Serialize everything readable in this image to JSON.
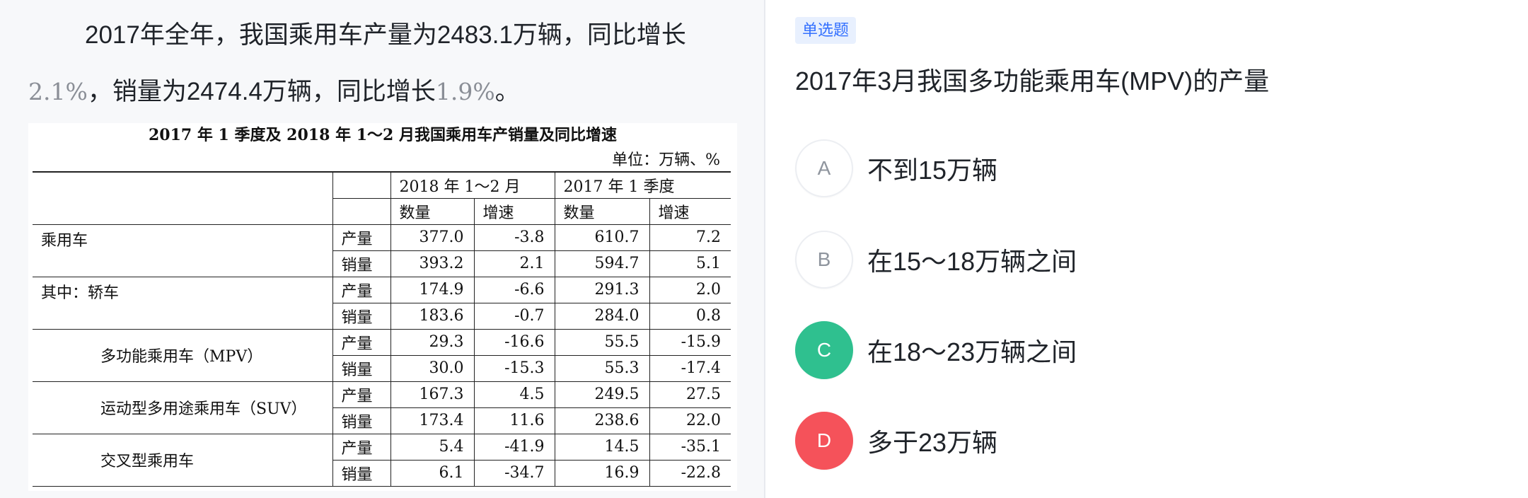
{
  "passage": {
    "line1": "2017年全年，我国乘用车产量为2483.1万辆，同比增长",
    "num1": "2.1%",
    "mid": "，销量为2474.4万辆，同比增长",
    "num2": "1.9%",
    "end": "。"
  },
  "table": {
    "title": "2017 年 1 季度及 2018 年 1～2 月我国乘用车产销量及同比增速",
    "unit": "单位：万辆、%",
    "period1": "2018 年 1～2 月",
    "period2": "2017 年 1 季度",
    "col_qty": "数量",
    "col_rate": "增速",
    "prod": "产量",
    "sales": "销量",
    "rows": [
      {
        "name": "乘用车",
        "prod": [
          "377.0",
          "-3.8",
          "610.7",
          "7.2"
        ],
        "sales": [
          "393.2",
          "2.1",
          "594.7",
          "5.1"
        ]
      },
      {
        "name": "其中：轿车",
        "prod": [
          "174.9",
          "-6.6",
          "291.3",
          "2.0"
        ],
        "sales": [
          "183.6",
          "-0.7",
          "284.0",
          "0.8"
        ]
      },
      {
        "name": "多功能乘用车（MPV）",
        "prod": [
          "29.3",
          "-16.6",
          "55.5",
          "-15.9"
        ],
        "sales": [
          "30.0",
          "-15.3",
          "55.3",
          "-17.4"
        ]
      },
      {
        "name": "运动型多用途乘用车（SUV）",
        "prod": [
          "167.3",
          "4.5",
          "249.5",
          "27.5"
        ],
        "sales": [
          "173.4",
          "11.6",
          "238.6",
          "22.0"
        ]
      },
      {
        "name": "交叉型乘用车",
        "prod": [
          "5.4",
          "-41.9",
          "14.5",
          "-35.1"
        ],
        "sales": [
          "6.1",
          "-34.7",
          "16.9",
          "-22.8"
        ]
      }
    ]
  },
  "question": {
    "badge": "单选题",
    "text": "2017年3月我国多功能乘用车(MPV)的产量",
    "options": [
      {
        "letter": "A",
        "text": "不到15万辆",
        "state": "default"
      },
      {
        "letter": "B",
        "text": "在15～18万辆之间",
        "state": "default"
      },
      {
        "letter": "C",
        "text": "在18～23万辆之间",
        "state": "correct"
      },
      {
        "letter": "D",
        "text": "多于23万辆",
        "state": "wrong"
      }
    ]
  },
  "colors": {
    "correct": "#2fc08f",
    "wrong": "#f5525a",
    "badge_bg": "#e8f0fe",
    "badge_text": "#3370ff"
  }
}
